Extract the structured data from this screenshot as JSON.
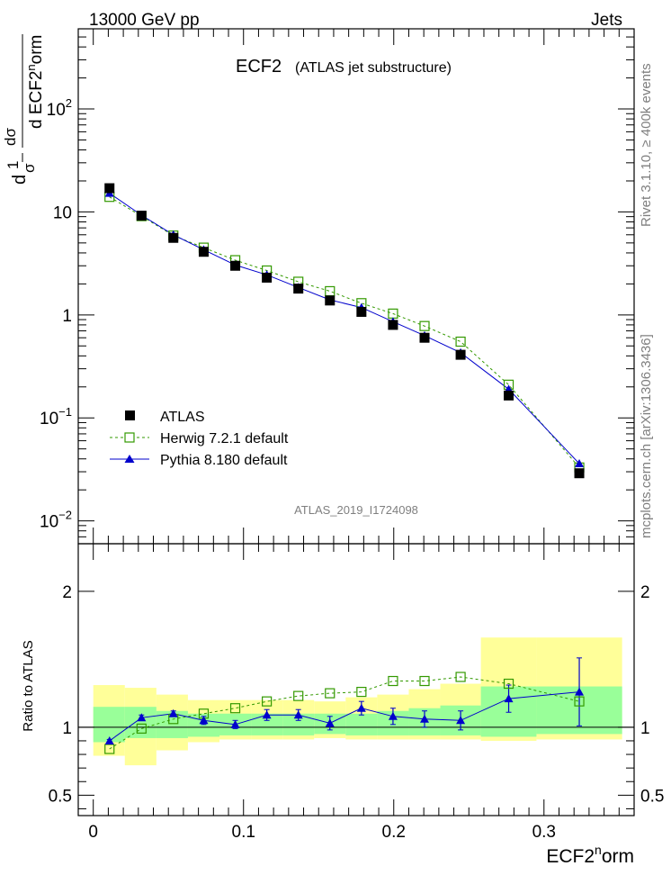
{
  "header": {
    "left": "13000 GeV pp",
    "right": "Jets"
  },
  "plot_title": "ECF2",
  "plot_subtitle": "(ATLAS jet substructure)",
  "watermark": "ATLAS_2019_I1724098",
  "side_labels": {
    "rivet": "Rivet 3.1.10, ≥ 400k events",
    "mcplots": "mcplots.cern.ch [arXiv:1306.3436]"
  },
  "axes": {
    "xlabel_main": "ECF2",
    "xlabel_sup": "n",
    "xlabel_tail": "orm",
    "ylabel_ratio": "Ratio to ATLAS",
    "ylabel_main": {
      "d": "d",
      "one": "1",
      "sigma": "σ",
      "num": "dσ",
      "den_d": "d ECF2",
      "den_sup": "n",
      "den_tail": "orm"
    }
  },
  "legend": [
    {
      "label": "ATLAS"
    },
    {
      "label": "Herwig 7.2.1 default"
    },
    {
      "label": "Pythia 8.180 default"
    }
  ],
  "chart_data": [
    {
      "type": "scatter",
      "panel": "main",
      "log_y": true,
      "xlim": [
        -0.01,
        0.36
      ],
      "ylim": [
        0.006,
        600
      ],
      "x_ticks": [
        "0",
        "0.1",
        "0.2",
        "0.3"
      ],
      "y_ticks": [
        {
          "value": 0.01,
          "label": "10",
          "sup": "−2"
        },
        {
          "value": 0.1,
          "label": "10",
          "sup": "−1"
        },
        {
          "value": 1,
          "label": "1",
          "sup": ""
        },
        {
          "value": 10,
          "label": "10",
          "sup": ""
        },
        {
          "value": 100,
          "label": "10",
          "sup": "2"
        }
      ],
      "x": [
        0.0108,
        0.0321,
        0.0533,
        0.0735,
        0.0945,
        0.1155,
        0.1365,
        0.1575,
        0.1785,
        0.1995,
        0.2205,
        0.2445,
        0.2765,
        0.3235
      ],
      "series": [
        {
          "name": "ATLAS",
          "color": "#000000",
          "marker": "filled-square",
          "values": [
            17.0,
            9.2,
            5.6,
            4.1,
            3.0,
            2.3,
            1.8,
            1.38,
            1.07,
            0.8,
            0.6,
            0.41,
            0.165,
            0.029
          ]
        },
        {
          "name": "Herwig 7.2.1 default",
          "color": "#339900",
          "marker": "open-square",
          "line": "dashed",
          "values": [
            14.0,
            9.1,
            5.9,
            4.5,
            3.4,
            2.7,
            2.1,
            1.7,
            1.3,
            1.03,
            0.78,
            0.55,
            0.21,
            0.033
          ]
        },
        {
          "name": "Pythia 8.180 default",
          "color": "#0000cc",
          "marker": "filled-triangle",
          "line": "solid",
          "values": [
            15.2,
            9.3,
            6.0,
            4.3,
            3.05,
            2.45,
            1.85,
            1.4,
            1.18,
            0.86,
            0.63,
            0.43,
            0.19,
            0.036
          ]
        }
      ]
    },
    {
      "type": "scatter",
      "panel": "ratio",
      "xlim": [
        -0.01,
        0.36
      ],
      "ylim": [
        0.35,
        2.35
      ],
      "y_ticks": [
        "0.5",
        "1",
        "2"
      ],
      "x": [
        0.0108,
        0.0321,
        0.0533,
        0.0735,
        0.0945,
        0.1155,
        0.1365,
        0.1575,
        0.1785,
        0.1995,
        0.2205,
        0.2445,
        0.2765,
        0.3235
      ],
      "bin_edges": [
        0.0,
        0.021,
        0.042,
        0.063,
        0.084,
        0.105,
        0.126,
        0.147,
        0.168,
        0.189,
        0.21,
        0.231,
        0.258,
        0.295,
        0.352
      ],
      "bands": {
        "inner": {
          "color": "#99ff99",
          "lo": [
            0.89,
            0.92,
            0.92,
            0.93,
            0.94,
            0.94,
            0.94,
            0.95,
            0.94,
            0.94,
            0.94,
            0.94,
            0.93,
            0.95
          ],
          "hi": [
            1.15,
            1.15,
            1.12,
            1.1,
            1.1,
            1.1,
            1.1,
            1.1,
            1.1,
            1.12,
            1.14,
            1.16,
            1.3,
            1.3
          ]
        },
        "outer": {
          "color": "#ffff99",
          "lo": [
            0.79,
            0.72,
            0.83,
            0.89,
            0.91,
            0.91,
            0.91,
            0.92,
            0.91,
            0.91,
            0.91,
            0.91,
            0.9,
            0.91
          ],
          "hi": [
            1.31,
            1.29,
            1.24,
            1.2,
            1.2,
            1.2,
            1.2,
            1.19,
            1.22,
            1.24,
            1.28,
            1.32,
            1.66,
            1.66
          ]
        }
      },
      "series": [
        {
          "name": "Herwig 7.2.1 default",
          "color": "#339900",
          "marker": "open-square",
          "line": "dashed",
          "values": [
            0.84,
            0.99,
            1.06,
            1.1,
            1.14,
            1.19,
            1.23,
            1.25,
            1.26,
            1.34,
            1.34,
            1.37,
            1.32,
            1.19
          ]
        },
        {
          "name": "Pythia 8.180 default",
          "color": "#0000cc",
          "marker": "filled-triangle",
          "line": "solid",
          "values": [
            0.9,
            1.07,
            1.1,
            1.05,
            1.02,
            1.09,
            1.09,
            1.03,
            1.14,
            1.08,
            1.06,
            1.05,
            1.21,
            1.26
          ],
          "err": [
            0.01,
            0.02,
            0.02,
            0.03,
            0.03,
            0.04,
            0.04,
            0.05,
            0.05,
            0.06,
            0.06,
            0.07,
            0.1,
            0.25
          ]
        }
      ]
    }
  ]
}
